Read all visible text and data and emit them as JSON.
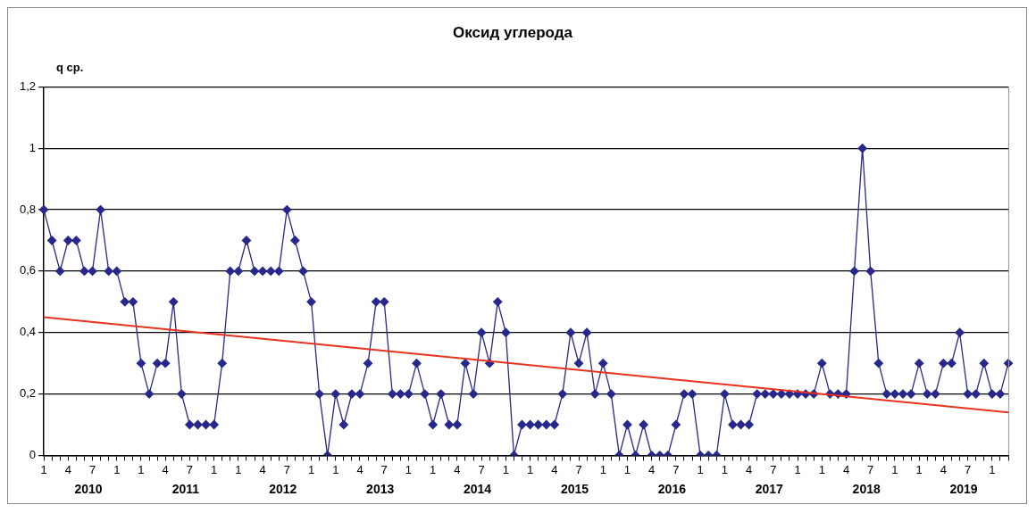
{
  "chart_data": {
    "type": "line",
    "title": "Оксид углерода",
    "ylabel": "q ср.",
    "categories": [
      "1",
      null,
      null,
      "4",
      null,
      null,
      "7",
      null,
      null,
      "1",
      null,
      null,
      "1",
      null,
      null,
      "4",
      null,
      null,
      "7",
      null,
      null,
      "1",
      null,
      null,
      "1",
      null,
      null,
      "4",
      null,
      null,
      "7",
      null,
      null,
      "1",
      null,
      null,
      "1",
      null,
      null,
      "4",
      null,
      null,
      "7",
      null,
      null,
      "1",
      null,
      null,
      "1",
      null,
      null,
      "4",
      null,
      null,
      "7",
      null,
      null,
      "1",
      null,
      null,
      "1",
      null,
      null,
      "4",
      null,
      null,
      "7",
      null,
      null,
      "1",
      null,
      null,
      "1",
      null,
      null,
      "4",
      null,
      null,
      "7",
      null,
      null,
      "1",
      null,
      null,
      "1",
      null,
      null,
      "4",
      null,
      null,
      "7",
      null,
      null,
      "1",
      null,
      null,
      "1",
      null,
      null,
      "4",
      null,
      null,
      "7",
      null,
      null,
      "1",
      null,
      null,
      "1",
      null,
      null,
      "4",
      null,
      null,
      "7",
      null,
      null,
      "1",
      null,
      null
    ],
    "series": [
      {
        "marker": "diamond",
        "color": "#28288c",
        "values": [
          0.8,
          0.7,
          0.6,
          0.7,
          0.7,
          0.6,
          0.6,
          0.8,
          0.6,
          0.6,
          0.5,
          0.5,
          0.3,
          0.2,
          0.3,
          0.3,
          0.5,
          0.2,
          0.1,
          0.1,
          0.1,
          0.1,
          0.3,
          0.6,
          0.6,
          0.7,
          0.6,
          0.6,
          0.6,
          0.6,
          0.8,
          0.7,
          0.6,
          0.5,
          0.2,
          0,
          0.2,
          0.1,
          0.2,
          0.2,
          0.3,
          0.5,
          0.5,
          0.2,
          0.2,
          0.2,
          0.3,
          0.2,
          0.1,
          0.2,
          0.1,
          0.1,
          0.3,
          0.2,
          0.4,
          0.3,
          0.5,
          0.4,
          0,
          0.1,
          0.1,
          0.1,
          0.1,
          0.1,
          0.2,
          0.4,
          0.3,
          0.4,
          0.2,
          0.3,
          0.2,
          0,
          0.1,
          0,
          0.1,
          0,
          0,
          0,
          0.1,
          0.2,
          0.2,
          0,
          0,
          0,
          0.2,
          0.1,
          0.1,
          0.1,
          0.2,
          0.2,
          0.2,
          0.2,
          0.2,
          0.2,
          0.2,
          0.2,
          0.3,
          0.2,
          0.2,
          0.2,
          0.6,
          1,
          0.6,
          0.3,
          0.2,
          0.2,
          0.2,
          0.2,
          0.3,
          0.2,
          0.2,
          0.3,
          0.3,
          0.4,
          0.2,
          0.2,
          0.3,
          0.2,
          0.2,
          0.3
        ]
      },
      {
        "marker": "none",
        "color": "#e8321e",
        "values": [
          0.45,
          null,
          null,
          null,
          null,
          null,
          null,
          null,
          null,
          null,
          null,
          null,
          null,
          null,
          null,
          null,
          null,
          null,
          null,
          null,
          null,
          null,
          null,
          null,
          null,
          null,
          null,
          null,
          null,
          null,
          null,
          null,
          null,
          null,
          null,
          null,
          null,
          null,
          null,
          null,
          null,
          null,
          null,
          null,
          null,
          null,
          null,
          null,
          null,
          null,
          null,
          null,
          null,
          null,
          null,
          null,
          null,
          null,
          null,
          null,
          null,
          null,
          null,
          null,
          null,
          null,
          null,
          null,
          null,
          null,
          null,
          null,
          null,
          null,
          null,
          null,
          null,
          null,
          null,
          null,
          null,
          null,
          null,
          null,
          null,
          null,
          null,
          null,
          null,
          null,
          null,
          null,
          null,
          null,
          null,
          null,
          null,
          null,
          null,
          null,
          null,
          null,
          null,
          null,
          null,
          null,
          null,
          null,
          null,
          null,
          null,
          null,
          null,
          null,
          null,
          null,
          null,
          null,
          null,
          0.14
        ]
      }
    ],
    "ylim": [
      0,
      1.2
    ],
    "yticks": [
      {
        "value": 0,
        "label": "0"
      },
      {
        "value": 0.2,
        "label": "0,2"
      },
      {
        "value": 0.4,
        "label": "0,4"
      },
      {
        "value": 0.6,
        "label": "0,6"
      },
      {
        "value": 0.8,
        "label": "0,8"
      },
      {
        "value": 1,
        "label": "1"
      },
      {
        "value": 1.2,
        "label": "1,2"
      }
    ],
    "annotations": [
      "2010",
      "2011",
      "2012",
      "2013",
      "2014",
      "2015",
      "2016",
      "2017",
      "2018",
      "2019"
    ],
    "grid": "y",
    "legend": false
  }
}
